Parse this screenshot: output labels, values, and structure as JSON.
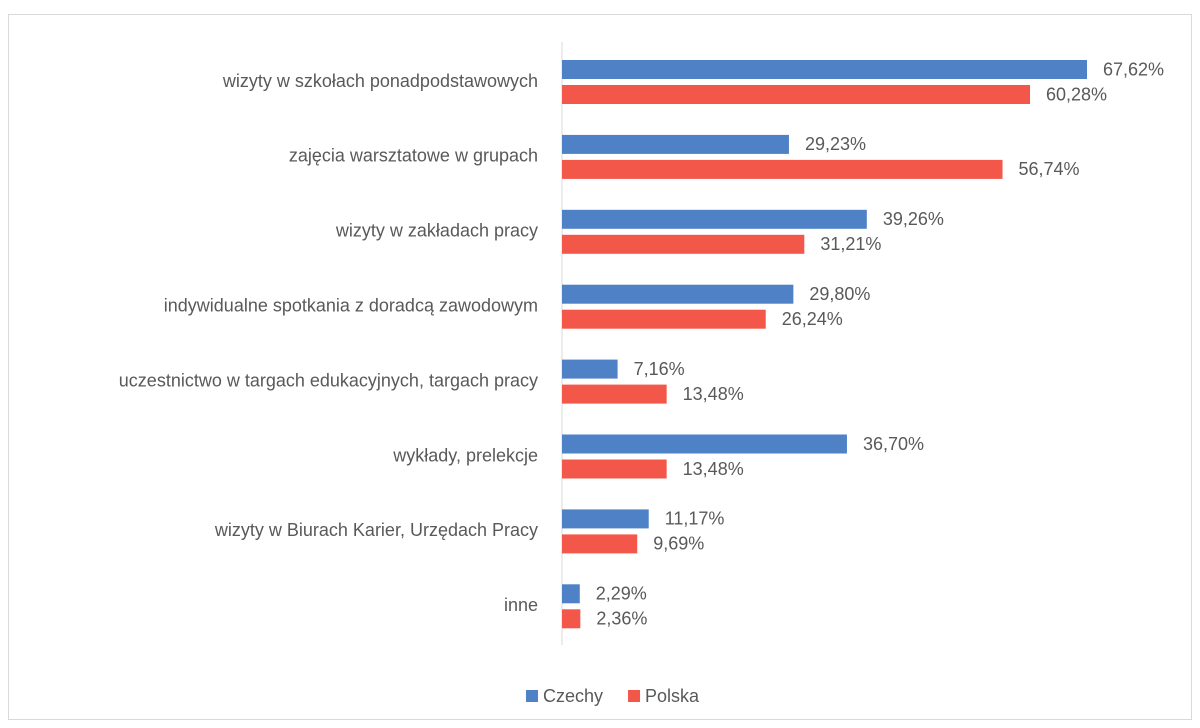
{
  "chart_data": {
    "type": "bar",
    "orientation": "horizontal",
    "categories": [
      "wizyty w szkołach ponadpodstawowych",
      "zajęcia warsztatowe w grupach",
      "wizyty w zakładach pracy",
      "indywidualne spotkania z doradcą zawodowym",
      "uczestnictwo w targach edukacyjnych, targach pracy",
      "wykłady, prelekcje",
      "wizyty w Biurach Karier, Urzędach Pracy",
      "inne"
    ],
    "series": [
      {
        "name": "Czechy",
        "color": "#4f81c7",
        "values": [
          67.62,
          29.23,
          39.26,
          29.8,
          7.16,
          36.7,
          11.17,
          2.29
        ],
        "value_labels": [
          "67,62%",
          "29,23%",
          "39,26%",
          "29,80%",
          "7,16%",
          "36,70%",
          "11,17%",
          "2,29%"
        ]
      },
      {
        "name": "Polska",
        "color": "#f2574a",
        "values": [
          60.28,
          56.74,
          31.21,
          26.24,
          13.48,
          13.48,
          9.69,
          2.36
        ],
        "value_labels": [
          "60,28%",
          "56,74%",
          "31,21%",
          "26,24%",
          "13,48%",
          "13,48%",
          "9,69%",
          "2,36%"
        ]
      }
    ],
    "legend": "bottom"
  }
}
